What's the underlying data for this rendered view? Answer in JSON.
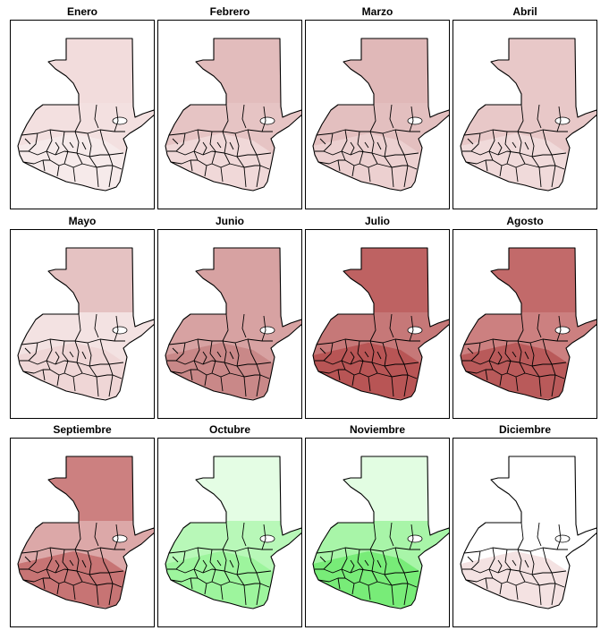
{
  "panels": [
    {
      "title": "Enero",
      "north": "#f2dcdc",
      "south": "#f3e0e0",
      "accent": "#f6eaea",
      "coast": "#f8eeee"
    },
    {
      "title": "Febrero",
      "north": "#e2bcbc",
      "south": "#e6c4c4",
      "accent": "#f0d8d8",
      "coast": "#f3e2e2"
    },
    {
      "title": "Marzo",
      "north": "#e0b8b8",
      "south": "#e3bfbf",
      "accent": "#ecd0d0",
      "coast": "#f2dfdf"
    },
    {
      "title": "Abril",
      "north": "#e8c8c8",
      "south": "#e8c8c8",
      "accent": "#f0dada",
      "coast": "#f4e4e4"
    },
    {
      "title": "Mayo",
      "north": "#e5c2c2",
      "south": "#f3e2e2",
      "accent": "#efd6d6",
      "coast": "#f6eaea"
    },
    {
      "title": "Junio",
      "north": "#d7a2a2",
      "south": "#d7a2a2",
      "accent": "#c98888",
      "coast": "#e2bcbc"
    },
    {
      "title": "Julio",
      "north": "#be6262",
      "south": "#c67878",
      "accent": "#b85555",
      "coast": "#d49898"
    },
    {
      "title": "Agosto",
      "north": "#c26a6a",
      "south": "#cc8080",
      "accent": "#b95a5a",
      "coast": "#d08c8c"
    },
    {
      "title": "Septiembre",
      "north": "#cc8080",
      "south": "#dca8a8",
      "accent": "#c77474",
      "coast": "#e5bebe"
    },
    {
      "title": "Octubre",
      "north": "#e4fde4",
      "south": "#b8f8b8",
      "accent": "#9df59d",
      "coast": "#d2fbd2"
    },
    {
      "title": "Noviembre",
      "north": "#e2fde2",
      "south": "#a8f5a8",
      "accent": "#78ec78",
      "coast": "#c8f9c8"
    },
    {
      "title": "Diciembre",
      "north": "#ffffff",
      "south": "#ffffff",
      "accent": "#f4e2e2",
      "coast": "#f8ecec"
    }
  ]
}
